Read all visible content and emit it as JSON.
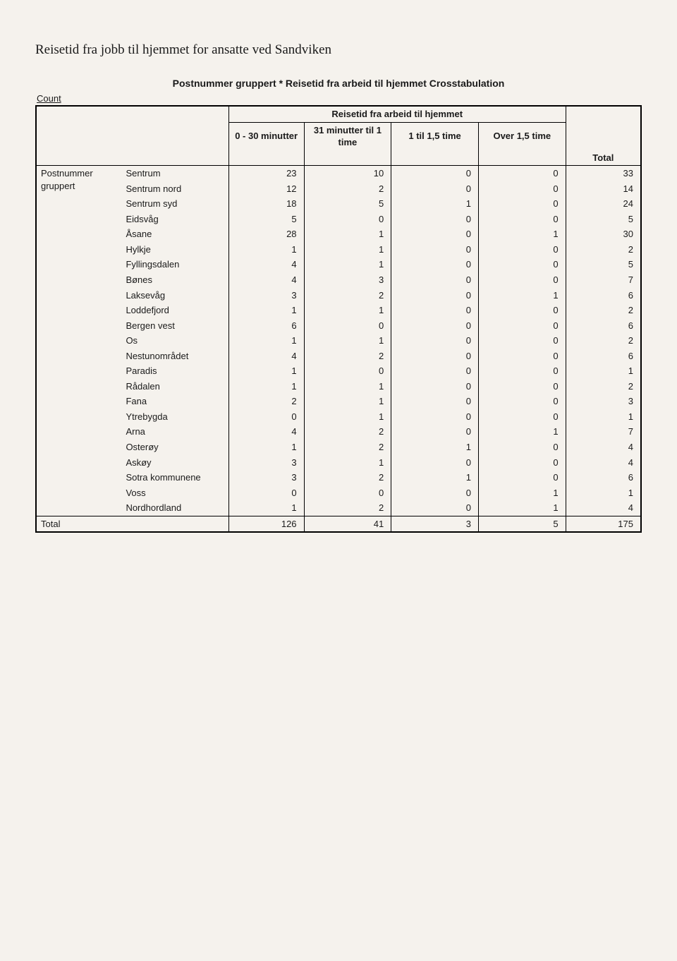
{
  "document": {
    "title": "Reisetid fra jobb til hjemmet for ansatte ved Sandviken",
    "table_title": "Postnummer gruppert * Reisetid fra arbeid til hjemmet Crosstabulation",
    "count_label": "Count",
    "spanner": "Reisetid fra arbeid til hjemmet",
    "columns": {
      "c1": "0 - 30 minutter",
      "c2": "31 minutter til 1 time",
      "c3": "1 til 1,5 time",
      "c4": "Over 1,5 time",
      "total": "Total"
    },
    "stub_group": {
      "line1": "Postnummer",
      "line2": "gruppert"
    },
    "rows": [
      {
        "label": "Sentrum",
        "v": [
          23,
          10,
          0,
          0,
          33
        ]
      },
      {
        "label": "Sentrum nord",
        "v": [
          12,
          2,
          0,
          0,
          14
        ]
      },
      {
        "label": "Sentrum syd",
        "v": [
          18,
          5,
          1,
          0,
          24
        ]
      },
      {
        "label": "Eidsvåg",
        "v": [
          5,
          0,
          0,
          0,
          5
        ]
      },
      {
        "label": "Åsane",
        "v": [
          28,
          1,
          0,
          1,
          30
        ]
      },
      {
        "label": "Hylkje",
        "v": [
          1,
          1,
          0,
          0,
          2
        ]
      },
      {
        "label": "Fyllingsdalen",
        "v": [
          4,
          1,
          0,
          0,
          5
        ]
      },
      {
        "label": "Bønes",
        "v": [
          4,
          3,
          0,
          0,
          7
        ]
      },
      {
        "label": "Laksevåg",
        "v": [
          3,
          2,
          0,
          1,
          6
        ]
      },
      {
        "label": "Loddefjord",
        "v": [
          1,
          1,
          0,
          0,
          2
        ]
      },
      {
        "label": "Bergen vest",
        "v": [
          6,
          0,
          0,
          0,
          6
        ]
      },
      {
        "label": "Os",
        "v": [
          1,
          1,
          0,
          0,
          2
        ]
      },
      {
        "label": "Nestunområdet",
        "v": [
          4,
          2,
          0,
          0,
          6
        ]
      },
      {
        "label": "Paradis",
        "v": [
          1,
          0,
          0,
          0,
          1
        ]
      },
      {
        "label": "Rådalen",
        "v": [
          1,
          1,
          0,
          0,
          2
        ]
      },
      {
        "label": "Fana",
        "v": [
          2,
          1,
          0,
          0,
          3
        ]
      },
      {
        "label": "Ytrebygda",
        "v": [
          0,
          1,
          0,
          0,
          1
        ]
      },
      {
        "label": "Arna",
        "v": [
          4,
          2,
          0,
          1,
          7
        ]
      },
      {
        "label": "Osterøy",
        "v": [
          1,
          2,
          1,
          0,
          4
        ]
      },
      {
        "label": "Askøy",
        "v": [
          3,
          1,
          0,
          0,
          4
        ]
      },
      {
        "label": "Sotra kommunene",
        "v": [
          3,
          2,
          1,
          0,
          6
        ]
      },
      {
        "label": "Voss",
        "v": [
          0,
          0,
          0,
          1,
          1
        ]
      },
      {
        "label": "Nordhordland",
        "v": [
          1,
          2,
          0,
          1,
          4
        ]
      }
    ],
    "total_row": {
      "label": "Total",
      "v": [
        126,
        41,
        3,
        5,
        175
      ]
    },
    "colors": {
      "page_bg": "#f5f2ed",
      "text": "#1a1a1a",
      "border": "#000000"
    },
    "fonts": {
      "title_family": "Times New Roman",
      "table_family": "Arial"
    }
  }
}
